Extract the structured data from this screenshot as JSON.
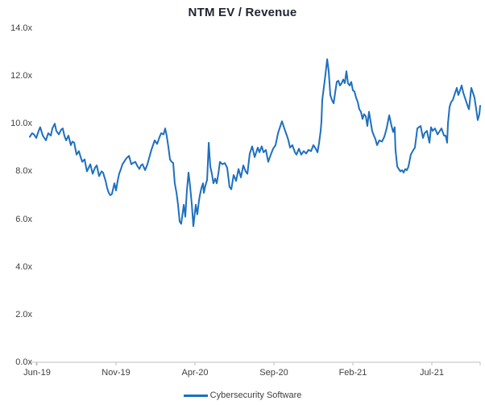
{
  "title": "NTM EV / Revenue",
  "legend": {
    "label": "Cybersecurity Software"
  },
  "colors": {
    "line": "#1E6FC0",
    "axis": "#BFBFBF",
    "title_text": "#1F2430",
    "tick_text": "#404040",
    "background": "#FFFFFF"
  },
  "chart_data": {
    "type": "line",
    "title": "NTM EV / Revenue",
    "xlabel": "",
    "ylabel": "",
    "ylim": [
      0,
      14
    ],
    "y_tick_labels": [
      "0.0x",
      "2.0x",
      "4.0x",
      "6.0x",
      "8.0x",
      "10.0x",
      "12.0x",
      "14.0x"
    ],
    "y_tick_values": [
      0,
      2,
      4,
      6,
      8,
      10,
      12,
      14
    ],
    "x_tick_labels": [
      "Jun-19",
      "Nov-19",
      "Apr-20",
      "Sep-20",
      "Feb-21",
      "Jul-21"
    ],
    "x_tick_months": [
      0,
      5,
      10,
      15,
      20,
      25
    ],
    "x_unit": "months since Jun-2019",
    "xlim_months": [
      -0.46,
      28.06
    ],
    "grid": false,
    "legend_position": "bottom",
    "series": [
      {
        "name": "Cybersecurity Software",
        "color": "#1E6FC0",
        "points_months_value": [
          [
            -0.46,
            9.45
          ],
          [
            -0.31,
            9.6
          ],
          [
            -0.2,
            9.55
          ],
          [
            -0.05,
            9.4
          ],
          [
            0.1,
            9.7
          ],
          [
            0.2,
            9.85
          ],
          [
            0.36,
            9.5
          ],
          [
            0.46,
            9.4
          ],
          [
            0.56,
            9.3
          ],
          [
            0.71,
            9.6
          ],
          [
            0.87,
            9.5
          ],
          [
            0.97,
            9.8
          ],
          [
            1.12,
            10.0
          ],
          [
            1.22,
            9.7
          ],
          [
            1.38,
            9.55
          ],
          [
            1.53,
            9.75
          ],
          [
            1.63,
            9.8
          ],
          [
            1.73,
            9.5
          ],
          [
            1.84,
            9.3
          ],
          [
            1.99,
            9.5
          ],
          [
            2.14,
            9.1
          ],
          [
            2.24,
            9.25
          ],
          [
            2.35,
            9.2
          ],
          [
            2.5,
            8.7
          ],
          [
            2.65,
            8.85
          ],
          [
            2.76,
            8.6
          ],
          [
            2.86,
            8.4
          ],
          [
            3.01,
            8.5
          ],
          [
            3.16,
            8.0
          ],
          [
            3.37,
            8.3
          ],
          [
            3.52,
            7.9
          ],
          [
            3.67,
            8.15
          ],
          [
            3.78,
            8.25
          ],
          [
            3.93,
            7.8
          ],
          [
            4.08,
            8.0
          ],
          [
            4.18,
            7.95
          ],
          [
            4.34,
            7.6
          ],
          [
            4.44,
            7.3
          ],
          [
            4.54,
            7.1
          ],
          [
            4.64,
            7.0
          ],
          [
            4.74,
            7.05
          ],
          [
            4.9,
            7.5
          ],
          [
            5.0,
            7.2
          ],
          [
            5.1,
            7.6
          ],
          [
            5.2,
            7.9
          ],
          [
            5.31,
            8.1
          ],
          [
            5.41,
            8.3
          ],
          [
            5.56,
            8.45
          ],
          [
            5.66,
            8.55
          ],
          [
            5.82,
            8.65
          ],
          [
            5.97,
            8.3
          ],
          [
            6.07,
            8.35
          ],
          [
            6.22,
            8.4
          ],
          [
            6.38,
            8.2
          ],
          [
            6.48,
            8.1
          ],
          [
            6.58,
            8.25
          ],
          [
            6.68,
            8.3
          ],
          [
            6.84,
            8.05
          ],
          [
            6.99,
            8.3
          ],
          [
            7.09,
            8.55
          ],
          [
            7.24,
            8.9
          ],
          [
            7.45,
            9.3
          ],
          [
            7.6,
            9.15
          ],
          [
            7.76,
            9.45
          ],
          [
            7.86,
            9.6
          ],
          [
            8.01,
            9.55
          ],
          [
            8.11,
            9.8
          ],
          [
            8.21,
            9.5
          ],
          [
            8.32,
            9.0
          ],
          [
            8.42,
            8.5
          ],
          [
            8.52,
            8.4
          ],
          [
            8.62,
            8.35
          ],
          [
            8.72,
            7.5
          ],
          [
            8.83,
            7.1
          ],
          [
            8.93,
            6.6
          ],
          [
            9.03,
            5.9
          ],
          [
            9.13,
            5.8
          ],
          [
            9.23,
            6.3
          ],
          [
            9.29,
            6.6
          ],
          [
            9.39,
            6.1
          ],
          [
            9.49,
            7.2
          ],
          [
            9.59,
            7.95
          ],
          [
            9.69,
            7.4
          ],
          [
            9.8,
            6.6
          ],
          [
            9.9,
            5.7
          ],
          [
            10.0,
            6.3
          ],
          [
            10.05,
            6.6
          ],
          [
            10.15,
            6.2
          ],
          [
            10.26,
            6.8
          ],
          [
            10.31,
            7.0
          ],
          [
            10.41,
            7.3
          ],
          [
            10.51,
            7.5
          ],
          [
            10.56,
            7.1
          ],
          [
            10.66,
            7.4
          ],
          [
            10.77,
            7.65
          ],
          [
            10.87,
            9.2
          ],
          [
            10.97,
            8.2
          ],
          [
            11.07,
            7.9
          ],
          [
            11.17,
            7.5
          ],
          [
            11.28,
            7.7
          ],
          [
            11.38,
            7.5
          ],
          [
            11.48,
            7.9
          ],
          [
            11.58,
            8.4
          ],
          [
            11.73,
            8.3
          ],
          [
            11.89,
            8.35
          ],
          [
            12.04,
            8.15
          ],
          [
            12.19,
            7.35
          ],
          [
            12.3,
            7.25
          ],
          [
            12.45,
            7.85
          ],
          [
            12.6,
            7.6
          ],
          [
            12.76,
            8.1
          ],
          [
            12.91,
            7.75
          ],
          [
            13.06,
            8.25
          ],
          [
            13.21,
            8.0
          ],
          [
            13.32,
            7.9
          ],
          [
            13.47,
            8.75
          ],
          [
            13.62,
            9.05
          ],
          [
            13.78,
            8.6
          ],
          [
            13.88,
            8.8
          ],
          [
            13.98,
            9.0
          ],
          [
            14.08,
            8.8
          ],
          [
            14.23,
            9.05
          ],
          [
            14.34,
            8.8
          ],
          [
            14.49,
            8.9
          ],
          [
            14.64,
            8.4
          ],
          [
            14.8,
            8.7
          ],
          [
            14.95,
            8.95
          ],
          [
            15.1,
            9.1
          ],
          [
            15.26,
            9.6
          ],
          [
            15.41,
            9.9
          ],
          [
            15.51,
            10.1
          ],
          [
            15.66,
            9.8
          ],
          [
            15.82,
            9.5
          ],
          [
            15.92,
            9.3
          ],
          [
            16.02,
            9.0
          ],
          [
            16.17,
            9.1
          ],
          [
            16.33,
            8.8
          ],
          [
            16.43,
            8.7
          ],
          [
            16.58,
            8.95
          ],
          [
            16.73,
            8.7
          ],
          [
            16.89,
            8.85
          ],
          [
            17.04,
            8.75
          ],
          [
            17.19,
            8.9
          ],
          [
            17.35,
            8.85
          ],
          [
            17.5,
            9.1
          ],
          [
            17.65,
            8.95
          ],
          [
            17.76,
            8.8
          ],
          [
            17.86,
            9.2
          ],
          [
            17.96,
            9.7
          ],
          [
            18.01,
            10.1
          ],
          [
            18.06,
            11.0
          ],
          [
            18.16,
            11.5
          ],
          [
            18.27,
            12.1
          ],
          [
            18.37,
            12.7
          ],
          [
            18.47,
            12.2
          ],
          [
            18.57,
            11.2
          ],
          [
            18.67,
            11.0
          ],
          [
            18.78,
            10.85
          ],
          [
            18.88,
            11.3
          ],
          [
            18.98,
            11.75
          ],
          [
            19.08,
            11.8
          ],
          [
            19.18,
            11.6
          ],
          [
            19.29,
            11.7
          ],
          [
            19.39,
            11.85
          ],
          [
            19.49,
            11.7
          ],
          [
            19.59,
            12.2
          ],
          [
            19.69,
            11.7
          ],
          [
            19.8,
            11.6
          ],
          [
            19.9,
            11.75
          ],
          [
            20.0,
            11.4
          ],
          [
            20.1,
            11.35
          ],
          [
            20.2,
            11.1
          ],
          [
            20.31,
            10.9
          ],
          [
            20.41,
            10.6
          ],
          [
            20.51,
            10.5
          ],
          [
            20.61,
            10.2
          ],
          [
            20.71,
            10.4
          ],
          [
            20.82,
            10.3
          ],
          [
            20.92,
            9.9
          ],
          [
            21.02,
            10.5
          ],
          [
            21.12,
            10.1
          ],
          [
            21.22,
            9.7
          ],
          [
            21.33,
            9.5
          ],
          [
            21.43,
            9.35
          ],
          [
            21.53,
            9.1
          ],
          [
            21.68,
            9.3
          ],
          [
            21.84,
            9.25
          ],
          [
            21.99,
            9.45
          ],
          [
            22.14,
            9.8
          ],
          [
            22.3,
            10.35
          ],
          [
            22.45,
            9.9
          ],
          [
            22.55,
            9.65
          ],
          [
            22.65,
            9.85
          ],
          [
            22.7,
            8.9
          ],
          [
            22.81,
            8.2
          ],
          [
            22.91,
            8.1
          ],
          [
            23.01,
            8.0
          ],
          [
            23.11,
            8.05
          ],
          [
            23.21,
            7.95
          ],
          [
            23.32,
            8.1
          ],
          [
            23.42,
            8.05
          ],
          [
            23.52,
            8.2
          ],
          [
            23.67,
            8.7
          ],
          [
            23.83,
            8.9
          ],
          [
            23.93,
            9.0
          ],
          [
            24.08,
            9.8
          ],
          [
            24.18,
            9.85
          ],
          [
            24.29,
            9.9
          ],
          [
            24.44,
            9.4
          ],
          [
            24.54,
            9.6
          ],
          [
            24.69,
            9.7
          ],
          [
            24.85,
            9.2
          ],
          [
            24.95,
            9.85
          ],
          [
            25.05,
            9.7
          ],
          [
            25.2,
            9.8
          ],
          [
            25.36,
            9.55
          ],
          [
            25.51,
            9.7
          ],
          [
            25.61,
            9.8
          ],
          [
            25.77,
            9.5
          ],
          [
            25.87,
            9.5
          ],
          [
            25.97,
            9.2
          ],
          [
            26.02,
            10.0
          ],
          [
            26.12,
            10.7
          ],
          [
            26.22,
            10.9
          ],
          [
            26.33,
            11.0
          ],
          [
            26.48,
            11.3
          ],
          [
            26.58,
            11.5
          ],
          [
            26.68,
            11.2
          ],
          [
            26.79,
            11.4
          ],
          [
            26.89,
            11.6
          ],
          [
            26.99,
            11.3
          ],
          [
            27.14,
            11.0
          ],
          [
            27.24,
            10.8
          ],
          [
            27.35,
            10.6
          ],
          [
            27.5,
            11.5
          ],
          [
            27.6,
            11.3
          ],
          [
            27.7,
            11.1
          ],
          [
            27.81,
            10.6
          ],
          [
            27.91,
            10.15
          ],
          [
            28.01,
            10.4
          ],
          [
            28.06,
            10.75
          ]
        ]
      }
    ]
  }
}
